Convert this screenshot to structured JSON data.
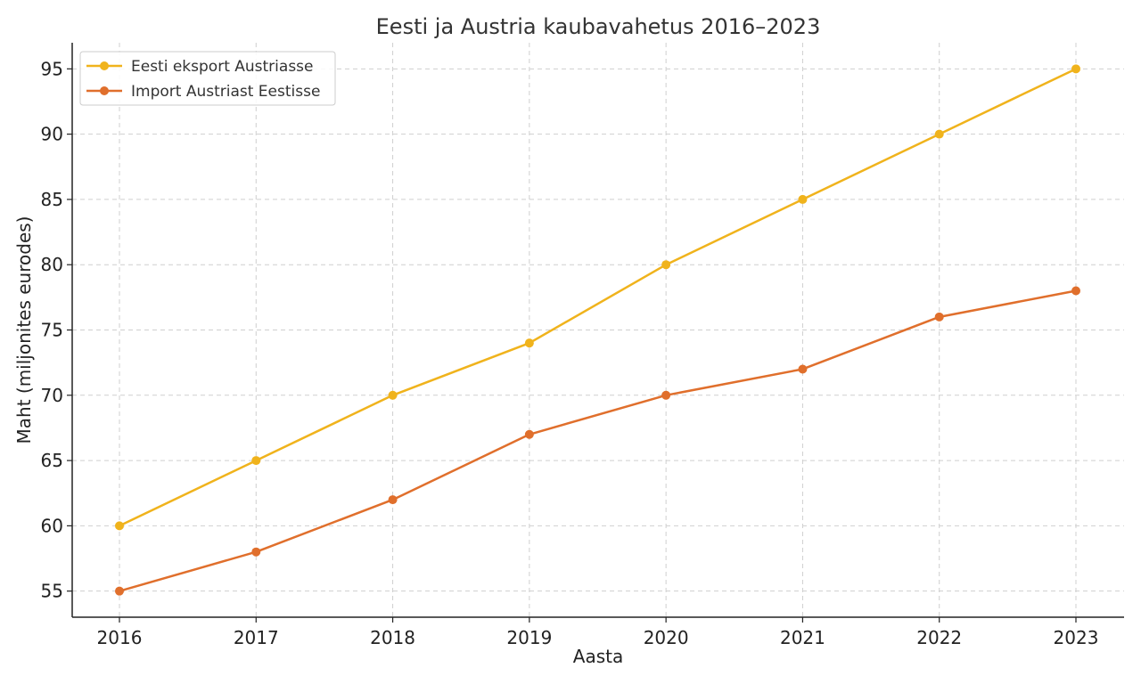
{
  "chart_data": {
    "type": "line",
    "title": "Eesti ja Austria kaubavahetus 2016–2023",
    "xlabel": "Aasta",
    "ylabel": "Maht (miljonites eurodes)",
    "x": [
      "2016",
      "2017",
      "2018",
      "2019",
      "2020",
      "2021",
      "2022",
      "2023"
    ],
    "y_ticks": [
      "55",
      "60",
      "65",
      "70",
      "75",
      "80",
      "85",
      "90",
      "95"
    ],
    "ylim": [
      53,
      97
    ],
    "grid": true,
    "legend_position": "top-left",
    "series": [
      {
        "name": "Eesti eksport Austriasse",
        "color": "#f0b31c",
        "values": [
          60,
          65,
          70,
          74,
          80,
          85,
          90,
          95
        ]
      },
      {
        "name": "Import Austriast Eestisse",
        "color": "#e06f2c",
        "values": [
          55,
          58,
          62,
          67,
          70,
          72,
          76,
          78
        ]
      }
    ]
  }
}
